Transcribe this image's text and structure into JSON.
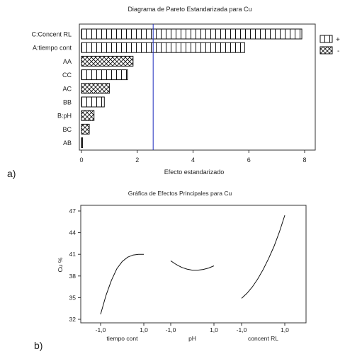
{
  "chart_data": [
    {
      "type": "bar",
      "orientation": "horizontal",
      "panel_label": "a)",
      "title": "Diagrama de Pareto Estandarizada para Cu",
      "xlabel": "Efecto estandarizado",
      "xlim": [
        0,
        8
      ],
      "xticks": [
        "0",
        "2",
        "4",
        "6",
        "8"
      ],
      "grid": false,
      "reference_line": 2.57,
      "legend_position": "right",
      "legend": [
        {
          "name": "+",
          "pattern": "vertical-stripes"
        },
        {
          "name": "-",
          "pattern": "crosshatch"
        }
      ],
      "bars": [
        {
          "label": "C:Concent RL",
          "value": 7.9,
          "sign": "+"
        },
        {
          "label": "A:tiempo cont",
          "value": 5.85,
          "sign": "+"
        },
        {
          "label": "AA",
          "value": 1.85,
          "sign": "-"
        },
        {
          "label": "CC",
          "value": 1.65,
          "sign": "+"
        },
        {
          "label": "AC",
          "value": 1.0,
          "sign": "-"
        },
        {
          "label": "BB",
          "value": 0.82,
          "sign": "+"
        },
        {
          "label": "B:pH",
          "value": 0.45,
          "sign": "-"
        },
        {
          "label": "BC",
          "value": 0.28,
          "sign": "-"
        },
        {
          "label": "AB",
          "value": 0.04,
          "sign": "+"
        }
      ]
    },
    {
      "type": "line",
      "panel_label": "b)",
      "title": "Gráfica de Efectos Principales para Cu",
      "ylabel": "Cu %",
      "ylim": [
        32,
        47
      ],
      "yticks": [
        "32",
        "35",
        "38",
        "41",
        "44",
        "47"
      ],
      "grid": false,
      "factors": [
        {
          "name": "tiempo cont",
          "tick_low": "-1,0",
          "tick_high": "1,0",
          "x": [
            -1,
            -0.75,
            -0.5,
            -0.25,
            0,
            0.25,
            0.5,
            0.75,
            1
          ],
          "y": [
            32.7,
            35.3,
            37.4,
            39.0,
            40.0,
            40.6,
            40.9,
            41.0,
            41.0
          ]
        },
        {
          "name": "pH",
          "tick_low": "-1,0",
          "tick_high": "1,0",
          "x": [
            -1,
            -0.75,
            -0.5,
            -0.25,
            0,
            0.25,
            0.5,
            0.75,
            1
          ],
          "y": [
            40.1,
            39.6,
            39.2,
            38.95,
            38.8,
            38.8,
            38.9,
            39.1,
            39.4
          ]
        },
        {
          "name": "concent RL",
          "tick_low": "-1,0",
          "tick_high": "1,0",
          "x": [
            -1,
            -0.75,
            -0.5,
            -0.25,
            0,
            0.25,
            0.5,
            0.75,
            1
          ],
          "y": [
            34.9,
            35.6,
            36.5,
            37.6,
            38.9,
            40.4,
            42.1,
            44.1,
            46.4
          ]
        }
      ]
    }
  ]
}
